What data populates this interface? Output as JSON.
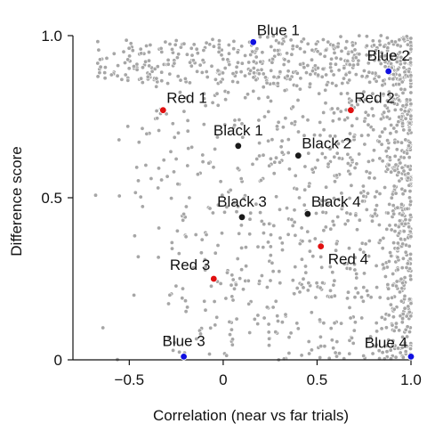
{
  "chart_data": {
    "type": "scatter",
    "xlabel": "Correlation (near vs far trials)",
    "ylabel": "Difference score",
    "xlim": [
      -0.8,
      1.0
    ],
    "ylim": [
      0,
      1.0
    ],
    "xticks": [
      {
        "value": -0.5,
        "label": "−0.5"
      },
      {
        "value": 0,
        "label": "0"
      },
      {
        "value": 0.5,
        "label": "0.5"
      },
      {
        "value": 1.0,
        "label": "1.0"
      }
    ],
    "yticks": [
      {
        "value": 0,
        "label": "0"
      },
      {
        "value": 0.5,
        "label": "0.5"
      },
      {
        "value": 1.0,
        "label": "1.0"
      }
    ],
    "grid": false,
    "background_points": {
      "color": "#a6a6a6",
      "description_count": 1500,
      "x_range": [
        -0.7,
        1.0
      ],
      "y_range": [
        0,
        1.0
      ]
    },
    "highlighted_points": [
      {
        "label": "Blue 1",
        "x": 0.16,
        "y": 0.98,
        "color": "#1010e0",
        "label_pos": "above-right"
      },
      {
        "label": "Blue 2",
        "x": 0.88,
        "y": 0.89,
        "color": "#1010e0",
        "label_pos": "above"
      },
      {
        "label": "Red 1",
        "x": -0.32,
        "y": 0.77,
        "color": "#e01010",
        "label_pos": "above-right"
      },
      {
        "label": "Red 2",
        "x": 0.68,
        "y": 0.77,
        "color": "#e01010",
        "label_pos": "above-right"
      },
      {
        "label": "Black 1",
        "x": 0.08,
        "y": 0.66,
        "color": "#1a1a1a",
        "label_pos": "above"
      },
      {
        "label": "Black 2",
        "x": 0.4,
        "y": 0.63,
        "color": "#1a1a1a",
        "label_pos": "above-right"
      },
      {
        "label": "Black 3",
        "x": 0.1,
        "y": 0.44,
        "color": "#1a1a1a",
        "label_pos": "above"
      },
      {
        "label": "Black 4",
        "x": 0.45,
        "y": 0.45,
        "color": "#1a1a1a",
        "label_pos": "above-right"
      },
      {
        "label": "Red 4",
        "x": 0.52,
        "y": 0.35,
        "color": "#e01010",
        "label_pos": "below-right"
      },
      {
        "label": "Red 3",
        "x": -0.05,
        "y": 0.25,
        "color": "#e01010",
        "label_pos": "above-left"
      },
      {
        "label": "Blue 3",
        "x": -0.21,
        "y": 0.01,
        "color": "#1010e0",
        "label_pos": "above"
      },
      {
        "label": "Blue 4",
        "x": 1.0,
        "y": 0.01,
        "color": "#1010e0",
        "label_pos": "above-left"
      }
    ]
  }
}
